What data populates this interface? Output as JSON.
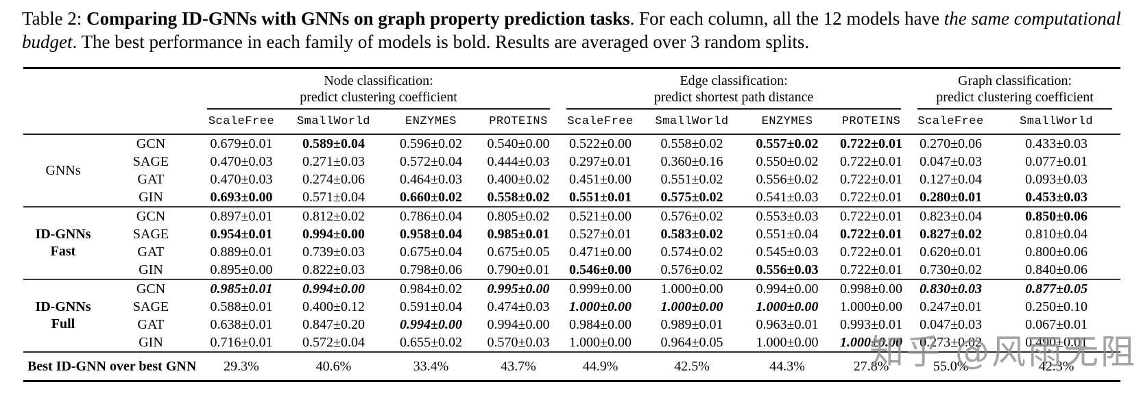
{
  "caption": {
    "prefix": "Table 2: ",
    "bold": "Comparing ID-GNNs with GNNs on graph property prediction tasks",
    "mid": ". For each column, all the 12 models have ",
    "italic": "the same computational budget",
    "suffix": ". The best performance in each family of models is bold. Results are averaged over 3 random splits."
  },
  "table": {
    "column_groups": [
      {
        "title_line1": "Node classification:",
        "title_line2": "predict clustering coefficient",
        "columns": [
          "ScaleFree",
          "SmallWorld",
          "ENZYMES",
          "PROTEINS"
        ]
      },
      {
        "title_line1": "Edge classification:",
        "title_line2": "predict shortest path distance",
        "columns": [
          "ScaleFree",
          "SmallWorld",
          "ENZYMES",
          "PROTEINS"
        ]
      },
      {
        "title_line1": "Graph classification:",
        "title_line2": "predict clustering coefficient",
        "columns": [
          "ScaleFree",
          "SmallWorld"
        ]
      }
    ],
    "row_groups": [
      {
        "label_lines": [
          "GNNs"
        ],
        "label_bold": false,
        "rows": [
          {
            "model": "GCN",
            "values": [
              [
                "0.679±0.01",
                ""
              ],
              [
                "0.589±0.04",
                "b"
              ],
              [
                "0.596±0.02",
                ""
              ],
              [
                "0.540±0.00",
                ""
              ],
              [
                "0.522±0.00",
                ""
              ],
              [
                "0.558±0.02",
                ""
              ],
              [
                "0.557±0.02",
                "b"
              ],
              [
                "0.722±0.01",
                "b"
              ],
              [
                "0.270±0.06",
                ""
              ],
              [
                "0.433±0.03",
                ""
              ]
            ]
          },
          {
            "model": "SAGE",
            "values": [
              [
                "0.470±0.03",
                ""
              ],
              [
                "0.271±0.03",
                ""
              ],
              [
                "0.572±0.04",
                ""
              ],
              [
                "0.444±0.03",
                ""
              ],
              [
                "0.297±0.01",
                ""
              ],
              [
                "0.360±0.16",
                ""
              ],
              [
                "0.550±0.02",
                ""
              ],
              [
                "0.722±0.01",
                ""
              ],
              [
                "0.047±0.03",
                ""
              ],
              [
                "0.077±0.01",
                ""
              ]
            ]
          },
          {
            "model": "GAT",
            "values": [
              [
                "0.470±0.03",
                ""
              ],
              [
                "0.274±0.06",
                ""
              ],
              [
                "0.464±0.03",
                ""
              ],
              [
                "0.400±0.02",
                ""
              ],
              [
                "0.451±0.00",
                ""
              ],
              [
                "0.551±0.02",
                ""
              ],
              [
                "0.556±0.02",
                ""
              ],
              [
                "0.722±0.01",
                ""
              ],
              [
                "0.127±0.04",
                ""
              ],
              [
                "0.093±0.03",
                ""
              ]
            ]
          },
          {
            "model": "GIN",
            "values": [
              [
                "0.693±0.00",
                "b"
              ],
              [
                "0.571±0.04",
                ""
              ],
              [
                "0.660±0.02",
                "b"
              ],
              [
                "0.558±0.02",
                "b"
              ],
              [
                "0.551±0.01",
                "b"
              ],
              [
                "0.575±0.02",
                "b"
              ],
              [
                "0.541±0.03",
                ""
              ],
              [
                "0.722±0.01",
                ""
              ],
              [
                "0.280±0.01",
                "b"
              ],
              [
                "0.453±0.03",
                "b"
              ]
            ]
          }
        ]
      },
      {
        "label_lines": [
          "ID-GNNs",
          "Fast"
        ],
        "label_bold": true,
        "rows": [
          {
            "model": "GCN",
            "values": [
              [
                "0.897±0.01",
                ""
              ],
              [
                "0.812±0.02",
                ""
              ],
              [
                "0.786±0.04",
                ""
              ],
              [
                "0.805±0.02",
                ""
              ],
              [
                "0.521±0.00",
                ""
              ],
              [
                "0.576±0.02",
                ""
              ],
              [
                "0.553±0.03",
                ""
              ],
              [
                "0.722±0.01",
                ""
              ],
              [
                "0.823±0.04",
                ""
              ],
              [
                "0.850±0.06",
                "b"
              ]
            ]
          },
          {
            "model": "SAGE",
            "values": [
              [
                "0.954±0.01",
                "b"
              ],
              [
                "0.994±0.00",
                "b"
              ],
              [
                "0.958±0.04",
                "b"
              ],
              [
                "0.985±0.01",
                "b"
              ],
              [
                "0.527±0.01",
                ""
              ],
              [
                "0.583±0.02",
                "b"
              ],
              [
                "0.551±0.04",
                ""
              ],
              [
                "0.722±0.01",
                "b"
              ],
              [
                "0.827±0.02",
                "b"
              ],
              [
                "0.810±0.04",
                ""
              ]
            ]
          },
          {
            "model": "GAT",
            "values": [
              [
                "0.889±0.01",
                ""
              ],
              [
                "0.739±0.03",
                ""
              ],
              [
                "0.675±0.04",
                ""
              ],
              [
                "0.675±0.05",
                ""
              ],
              [
                "0.471±0.00",
                ""
              ],
              [
                "0.574±0.02",
                ""
              ],
              [
                "0.545±0.03",
                ""
              ],
              [
                "0.722±0.01",
                ""
              ],
              [
                "0.620±0.01",
                ""
              ],
              [
                "0.800±0.06",
                ""
              ]
            ]
          },
          {
            "model": "GIN",
            "values": [
              [
                "0.895±0.00",
                ""
              ],
              [
                "0.822±0.03",
                ""
              ],
              [
                "0.798±0.06",
                ""
              ],
              [
                "0.790±0.01",
                ""
              ],
              [
                "0.546±0.00",
                "b"
              ],
              [
                "0.576±0.02",
                ""
              ],
              [
                "0.556±0.03",
                "b"
              ],
              [
                "0.722±0.01",
                ""
              ],
              [
                "0.730±0.02",
                ""
              ],
              [
                "0.840±0.06",
                ""
              ]
            ]
          }
        ]
      },
      {
        "label_lines": [
          "ID-GNNs",
          "Full"
        ],
        "label_bold": true,
        "rows": [
          {
            "model": "GCN",
            "values": [
              [
                "0.985±0.01",
                "bi"
              ],
              [
                "0.994±0.00",
                "bi"
              ],
              [
                "0.984±0.02",
                ""
              ],
              [
                "0.995±0.00",
                "bi"
              ],
              [
                "0.999±0.00",
                ""
              ],
              [
                "1.000±0.00",
                ""
              ],
              [
                "0.994±0.00",
                ""
              ],
              [
                "0.998±0.00",
                ""
              ],
              [
                "0.830±0.03",
                "bi"
              ],
              [
                "0.877±0.05",
                "bi"
              ]
            ]
          },
          {
            "model": "SAGE",
            "values": [
              [
                "0.588±0.01",
                ""
              ],
              [
                "0.400±0.12",
                ""
              ],
              [
                "0.591±0.04",
                ""
              ],
              [
                "0.474±0.03",
                ""
              ],
              [
                "1.000±0.00",
                "bi"
              ],
              [
                "1.000±0.00",
                "bi"
              ],
              [
                "1.000±0.00",
                "bi"
              ],
              [
                "1.000±0.00",
                ""
              ],
              [
                "0.247±0.01",
                ""
              ],
              [
                "0.250±0.10",
                ""
              ]
            ]
          },
          {
            "model": "GAT",
            "values": [
              [
                "0.638±0.01",
                ""
              ],
              [
                "0.847±0.20",
                ""
              ],
              [
                "0.994±0.00",
                "bi"
              ],
              [
                "0.994±0.00",
                ""
              ],
              [
                "0.984±0.00",
                ""
              ],
              [
                "0.989±0.01",
                ""
              ],
              [
                "0.963±0.01",
                ""
              ],
              [
                "0.993±0.01",
                ""
              ],
              [
                "0.047±0.03",
                ""
              ],
              [
                "0.067±0.01",
                ""
              ]
            ]
          },
          {
            "model": "GIN",
            "values": [
              [
                "0.716±0.01",
                ""
              ],
              [
                "0.572±0.04",
                ""
              ],
              [
                "0.655±0.02",
                ""
              ],
              [
                "0.570±0.03",
                ""
              ],
              [
                "1.000±0.00",
                ""
              ],
              [
                "0.964±0.05",
                ""
              ],
              [
                "1.000±0.00",
                ""
              ],
              [
                "1.000±0.00",
                "bi"
              ],
              [
                "0.273±0.02",
                ""
              ],
              [
                "0.490±0.01",
                ""
              ]
            ]
          }
        ]
      }
    ],
    "footer": {
      "label": "Best ID-GNN over best GNN",
      "values": [
        "29.3%",
        "40.6%",
        "33.4%",
        "43.7%",
        "44.9%",
        "42.5%",
        "44.3%",
        "27.8%",
        "55.0%",
        "42.3%"
      ]
    }
  },
  "watermark": "知乎 @风雨无阻"
}
